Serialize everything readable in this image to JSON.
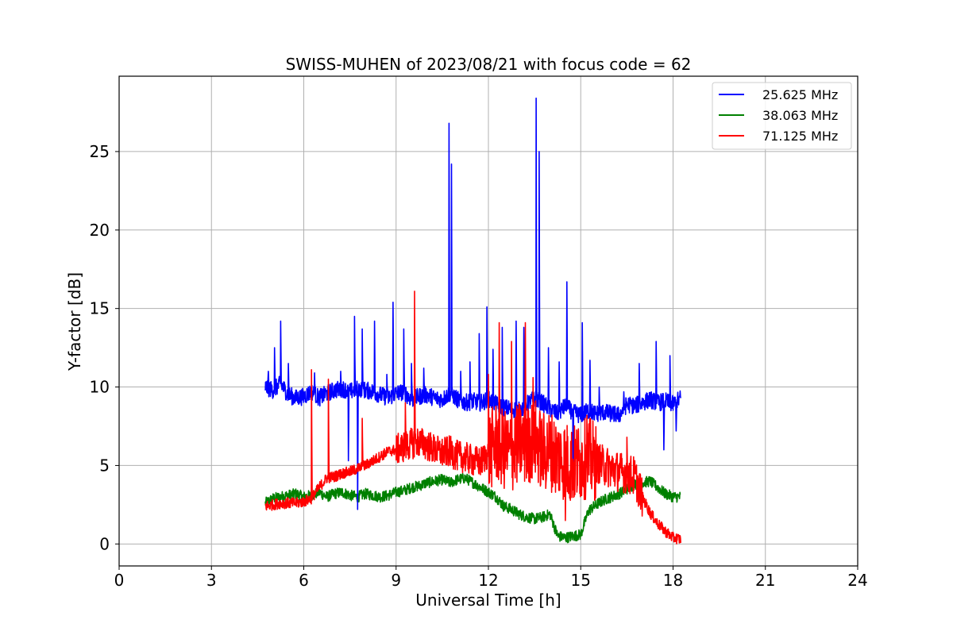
{
  "chart_data": {
    "type": "line",
    "title": "SWISS-MUHEN of 2023/08/21 with focus code = 62",
    "xlabel": "Universal Time [h]",
    "ylabel": "Y-factor [dB]",
    "xlim": [
      0,
      24
    ],
    "ylim": [
      -1.4,
      29.8
    ],
    "xticks": [
      0,
      3,
      6,
      9,
      12,
      15,
      18,
      21,
      24
    ],
    "xtick_labels": [
      "0",
      "3",
      "6",
      "9",
      "12",
      "15",
      "18",
      "21",
      "24"
    ],
    "yticks": [
      0,
      5,
      10,
      15,
      20,
      25
    ],
    "ytick_labels": [
      "0",
      "5",
      "10",
      "15",
      "20",
      "25"
    ],
    "grid": true,
    "legend_position": "top-right",
    "series": [
      {
        "name": "25.625 MHz",
        "color": "#0000ff",
        "x": [
          4.75,
          5.0,
          5.25,
          5.5,
          5.75,
          6.0,
          6.25,
          6.5,
          6.75,
          7.0,
          7.25,
          7.5,
          7.75,
          8.0,
          8.25,
          8.5,
          8.75,
          9.0,
          9.25,
          9.5,
          9.75,
          10.0,
          10.25,
          10.5,
          10.75,
          11.0,
          11.25,
          11.5,
          11.75,
          12.0,
          12.25,
          12.5,
          12.75,
          13.0,
          13.25,
          13.5,
          13.75,
          14.0,
          14.25,
          14.5,
          14.75,
          15.0,
          15.25,
          15.5,
          15.75,
          16.0,
          16.25,
          16.5,
          16.75,
          17.0,
          17.25,
          17.5,
          17.75,
          18.0,
          18.25
        ],
        "y": [
          10.0,
          9.8,
          10.2,
          9.5,
          9.3,
          9.4,
          9.7,
          9.3,
          9.6,
          9.8,
          9.9,
          9.7,
          9.9,
          9.8,
          9.7,
          9.5,
          9.3,
          9.6,
          9.7,
          9.2,
          9.4,
          9.5,
          9.3,
          9.2,
          9.6,
          9.2,
          9.0,
          9.1,
          9.0,
          9.2,
          8.9,
          8.7,
          8.6,
          8.5,
          8.9,
          9.3,
          9.0,
          8.6,
          8.3,
          8.8,
          8.4,
          8.2,
          8.5,
          8.3,
          8.4,
          8.3,
          8.2,
          8.9,
          8.8,
          9.0,
          9.2,
          9.0,
          9.1,
          8.9,
          9.3
        ],
        "spikes": [
          [
            4.85,
            11.0
          ],
          [
            5.05,
            12.5
          ],
          [
            5.25,
            14.2
          ],
          [
            5.5,
            11.5
          ],
          [
            6.35,
            10.9
          ],
          [
            7.2,
            11.0
          ],
          [
            7.45,
            5.3
          ],
          [
            7.65,
            14.5
          ],
          [
            7.75,
            2.2
          ],
          [
            7.9,
            13.7
          ],
          [
            8.3,
            14.2
          ],
          [
            8.7,
            10.8
          ],
          [
            8.9,
            15.4
          ],
          [
            9.25,
            13.7
          ],
          [
            9.5,
            11.5
          ],
          [
            9.9,
            11.2
          ],
          [
            10.72,
            26.8
          ],
          [
            10.8,
            24.2
          ],
          [
            11.1,
            11.0
          ],
          [
            11.4,
            11.6
          ],
          [
            11.7,
            13.4
          ],
          [
            11.95,
            15.1
          ],
          [
            12.15,
            12.4
          ],
          [
            12.45,
            13.8
          ],
          [
            12.9,
            14.2
          ],
          [
            13.15,
            13.8
          ],
          [
            13.55,
            28.4
          ],
          [
            13.65,
            25.0
          ],
          [
            13.95,
            12.5
          ],
          [
            14.3,
            11.6
          ],
          [
            14.55,
            16.7
          ],
          [
            14.75,
            3.8
          ],
          [
            15.05,
            14.1
          ],
          [
            15.3,
            11.7
          ],
          [
            15.6,
            10.0
          ],
          [
            16.4,
            9.7
          ],
          [
            16.9,
            11.5
          ],
          [
            17.45,
            12.9
          ],
          [
            17.7,
            11.0
          ],
          [
            17.9,
            12.0
          ],
          [
            17.7,
            6.0
          ],
          [
            18.1,
            7.2
          ]
        ]
      },
      {
        "name": "38.063 MHz",
        "color": "#008000",
        "x": [
          4.75,
          5.0,
          5.25,
          5.5,
          5.75,
          6.0,
          6.25,
          6.5,
          6.75,
          7.0,
          7.25,
          7.5,
          7.75,
          8.0,
          8.25,
          8.5,
          8.75,
          9.0,
          9.25,
          9.5,
          9.75,
          10.0,
          10.25,
          10.5,
          10.75,
          11.0,
          11.25,
          11.5,
          11.75,
          12.0,
          12.25,
          12.5,
          12.75,
          13.0,
          13.25,
          13.5,
          13.75,
          14.0,
          14.25,
          14.5,
          14.75,
          15.0,
          15.25,
          15.5,
          15.75,
          16.0,
          16.25,
          16.5,
          16.75,
          17.0,
          17.25,
          17.5,
          17.75,
          18.0,
          18.25
        ],
        "y": [
          2.6,
          2.9,
          3.0,
          3.1,
          3.2,
          3.0,
          3.1,
          3.3,
          3.0,
          3.2,
          3.3,
          3.1,
          3.0,
          3.2,
          3.1,
          3.0,
          3.1,
          3.3,
          3.4,
          3.6,
          3.7,
          3.9,
          4.0,
          4.1,
          3.9,
          4.1,
          4.2,
          3.9,
          3.6,
          3.3,
          3.0,
          2.4,
          2.2,
          1.9,
          1.7,
          1.6,
          1.7,
          1.9,
          0.5,
          0.4,
          0.5,
          0.6,
          2.1,
          2.5,
          2.8,
          3.0,
          3.2,
          3.5,
          3.8,
          3.9,
          4.0,
          3.6,
          3.2,
          3.0,
          3.0
        ]
      },
      {
        "name": "71.125 MHz",
        "color": "#ff0000",
        "x": [
          4.75,
          5.0,
          5.25,
          5.5,
          5.75,
          6.0,
          6.25,
          6.5,
          6.75,
          7.0,
          7.25,
          7.5,
          7.75,
          8.0,
          8.25,
          8.5,
          8.75,
          9.0,
          9.25,
          9.5,
          9.75,
          10.0,
          10.25,
          10.5,
          10.75,
          11.0,
          11.25,
          11.5,
          11.75,
          12.0,
          12.25,
          12.5,
          12.75,
          13.0,
          13.25,
          13.5,
          13.75,
          14.0,
          14.25,
          14.5,
          14.75,
          15.0,
          15.25,
          15.5,
          15.75,
          16.0,
          16.25,
          16.5,
          16.75,
          17.0,
          17.25,
          17.5,
          17.75,
          18.0,
          18.25
        ],
        "y": [
          2.4,
          2.5,
          2.6,
          2.6,
          2.6,
          2.7,
          2.9,
          3.6,
          4.2,
          4.3,
          4.5,
          4.6,
          4.8,
          5.0,
          5.3,
          5.6,
          5.9,
          6.0,
          6.2,
          6.4,
          6.5,
          6.3,
          6.0,
          5.8,
          5.9,
          5.6,
          5.5,
          5.3,
          5.2,
          5.8,
          6.5,
          6.0,
          5.8,
          6.5,
          6.2,
          6.8,
          5.8,
          6.0,
          5.5,
          5.3,
          5.0,
          5.3,
          5.5,
          5.2,
          5.0,
          4.8,
          4.6,
          4.5,
          4.3,
          3.0,
          2.0,
          1.3,
          0.8,
          0.4,
          0.3
        ],
        "spikes": [
          [
            6.25,
            11.1
          ],
          [
            6.8,
            10.5
          ],
          [
            7.9,
            8.0
          ],
          [
            9.6,
            16.1
          ],
          [
            9.3,
            9.0
          ],
          [
            12.35,
            14.1
          ],
          [
            12.0,
            10.8
          ],
          [
            12.75,
            12.9
          ],
          [
            13.2,
            14.1
          ],
          [
            13.45,
            10.6
          ],
          [
            14.5,
            1.5
          ],
          [
            16.5,
            6.8
          ],
          [
            15.2,
            8.2
          ]
        ]
      }
    ]
  }
}
